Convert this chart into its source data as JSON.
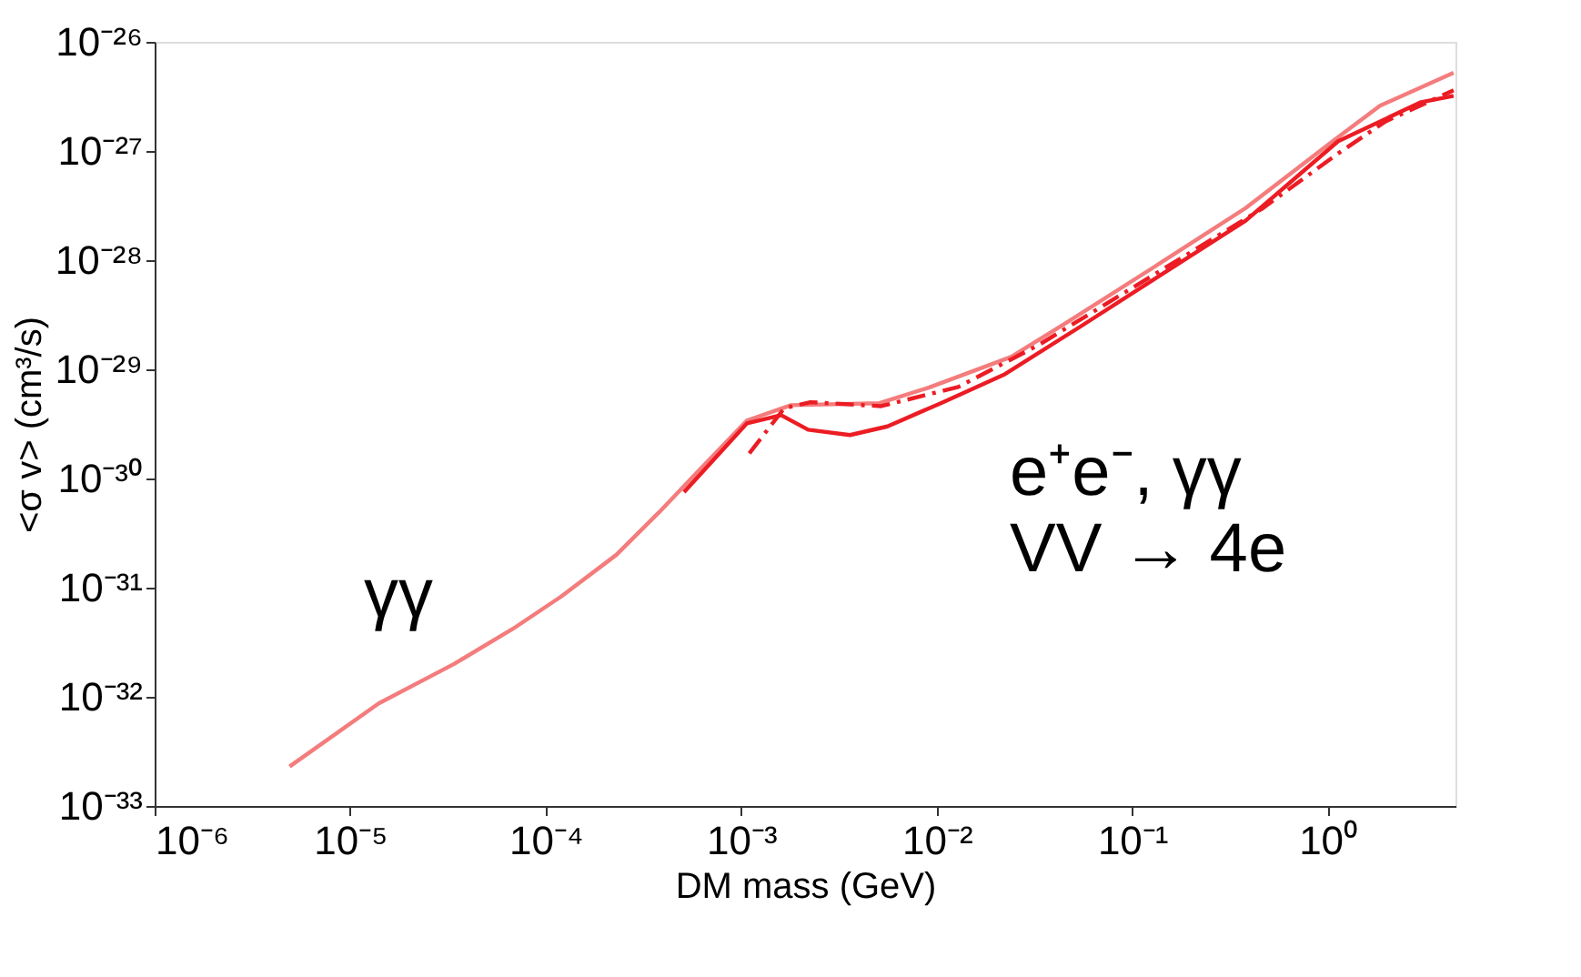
{
  "chart_data": {
    "type": "line",
    "xlabel": "DM mass (GeV)",
    "ylabel": "<σ v> (cm³/s)",
    "log": "xy",
    "grid": false,
    "marker": "none",
    "xlim": [
      1e-06,
      4.5
    ],
    "ylim": [
      1e-33,
      1e-26
    ],
    "xticks": [
      {
        "value": 1e-06,
        "label": "10⁻⁶"
      },
      {
        "value": 1e-05,
        "label": "10⁻⁵"
      },
      {
        "value": 0.0001,
        "label": "10⁻⁴"
      },
      {
        "value": 0.001,
        "label": "10⁻³"
      },
      {
        "value": 0.01,
        "label": "10⁻²"
      },
      {
        "value": 0.1,
        "label": "10⁻¹"
      },
      {
        "value": 1,
        "label": "10⁰"
      }
    ],
    "yticks": [
      {
        "value": 1e-33,
        "label": "10⁻³³"
      },
      {
        "value": 1e-32,
        "label": "10⁻³²"
      },
      {
        "value": 1e-31,
        "label": "10⁻³¹"
      },
      {
        "value": 1e-30,
        "label": "10⁻³⁰"
      },
      {
        "value": 1e-29,
        "label": "10⁻²⁹"
      },
      {
        "value": 1e-28,
        "label": "10⁻²⁸"
      },
      {
        "value": 1e-27,
        "label": "10⁻²⁷"
      },
      {
        "value": 1e-26,
        "label": "10⁻²⁶"
      }
    ],
    "annotations": [
      "γγ",
      "e⁺e⁻, γγ",
      "VV → 4e"
    ],
    "series": [
      {
        "color": "#f47c7c",
        "line_style": "solid",
        "x": [
          4.9e-06,
          1.4e-05,
          3.4e-05,
          6.8e-05,
          0.00012,
          0.00023,
          0.00038,
          0.00054,
          0.00107,
          0.0018,
          0.0051,
          0.0091,
          0.024,
          0.045,
          0.13,
          0.38,
          1.06,
          1.85,
          4.4
        ],
        "values": [
          2.3e-33,
          8.7e-33,
          2e-32,
          4.2e-32,
          8.3e-32,
          2e-31,
          4.9e-31,
          9.5e-31,
          3.4e-30,
          4.7e-30,
          4.9e-30,
          6.8e-30,
          1.3e-29,
          2.6e-29,
          8.7e-29,
          3e-28,
          1.23e-27,
          2.6e-27,
          5.2e-27
        ]
      },
      {
        "color": "#ec1c24",
        "line_style": "solid",
        "x": [
          0.00051,
          0.00107,
          0.0016,
          0.0022,
          0.0036,
          0.0056,
          0.0105,
          0.022,
          0.055,
          0.38,
          1.13,
          3.0,
          4.4
        ],
        "values": [
          7.5e-31,
          3.2e-30,
          3.8e-30,
          2.8e-30,
          2.5e-30,
          3e-30,
          4.9e-30,
          8.9e-30,
          2.5e-29,
          2.3e-28,
          1.23e-27,
          2.8e-27,
          3.2e-27
        ]
      },
      {
        "color": "#ec1c24",
        "line_style": "dashed",
        "x": [
          0.0011,
          0.00166,
          0.00226,
          0.0052,
          0.0129,
          0.033,
          0.46,
          1.13,
          1.97,
          4.4
        ],
        "values": [
          1.7e-30,
          4.4e-30,
          5e-30,
          4.6e-30,
          6.9e-30,
          1.66e-29,
          2.95e-28,
          9.5e-28,
          1.86e-27,
          3.6e-27
        ]
      }
    ]
  }
}
